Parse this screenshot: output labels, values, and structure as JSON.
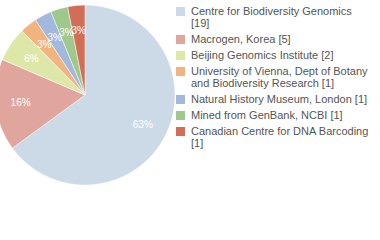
{
  "chart_data": {
    "type": "pie",
    "categories": [
      "Centre for Biodiversity Genomics [19]",
      "Macrogen, Korea [5]",
      "Beijing Genomics Institute [2]",
      "University of Vienna, Dept of Botany and Biodiversity Research [1]",
      "Natural History Museum, London [1]",
      "Mined from GenBank, NCBI [1]",
      "Canadian Centre for DNA Barcoding [1]"
    ],
    "values": [
      63,
      16,
      6,
      3,
      3,
      3,
      3
    ],
    "value_labels": [
      "63%",
      "16%",
      "6%",
      "3%",
      "3%",
      "3%",
      "3%"
    ],
    "colors": [
      "#ccd9e6",
      "#e0a59d",
      "#dde8a8",
      "#f2b47f",
      "#a3b8dd",
      "#9fc98c",
      "#d26e57"
    ],
    "data_labels": true,
    "legend": "right"
  }
}
